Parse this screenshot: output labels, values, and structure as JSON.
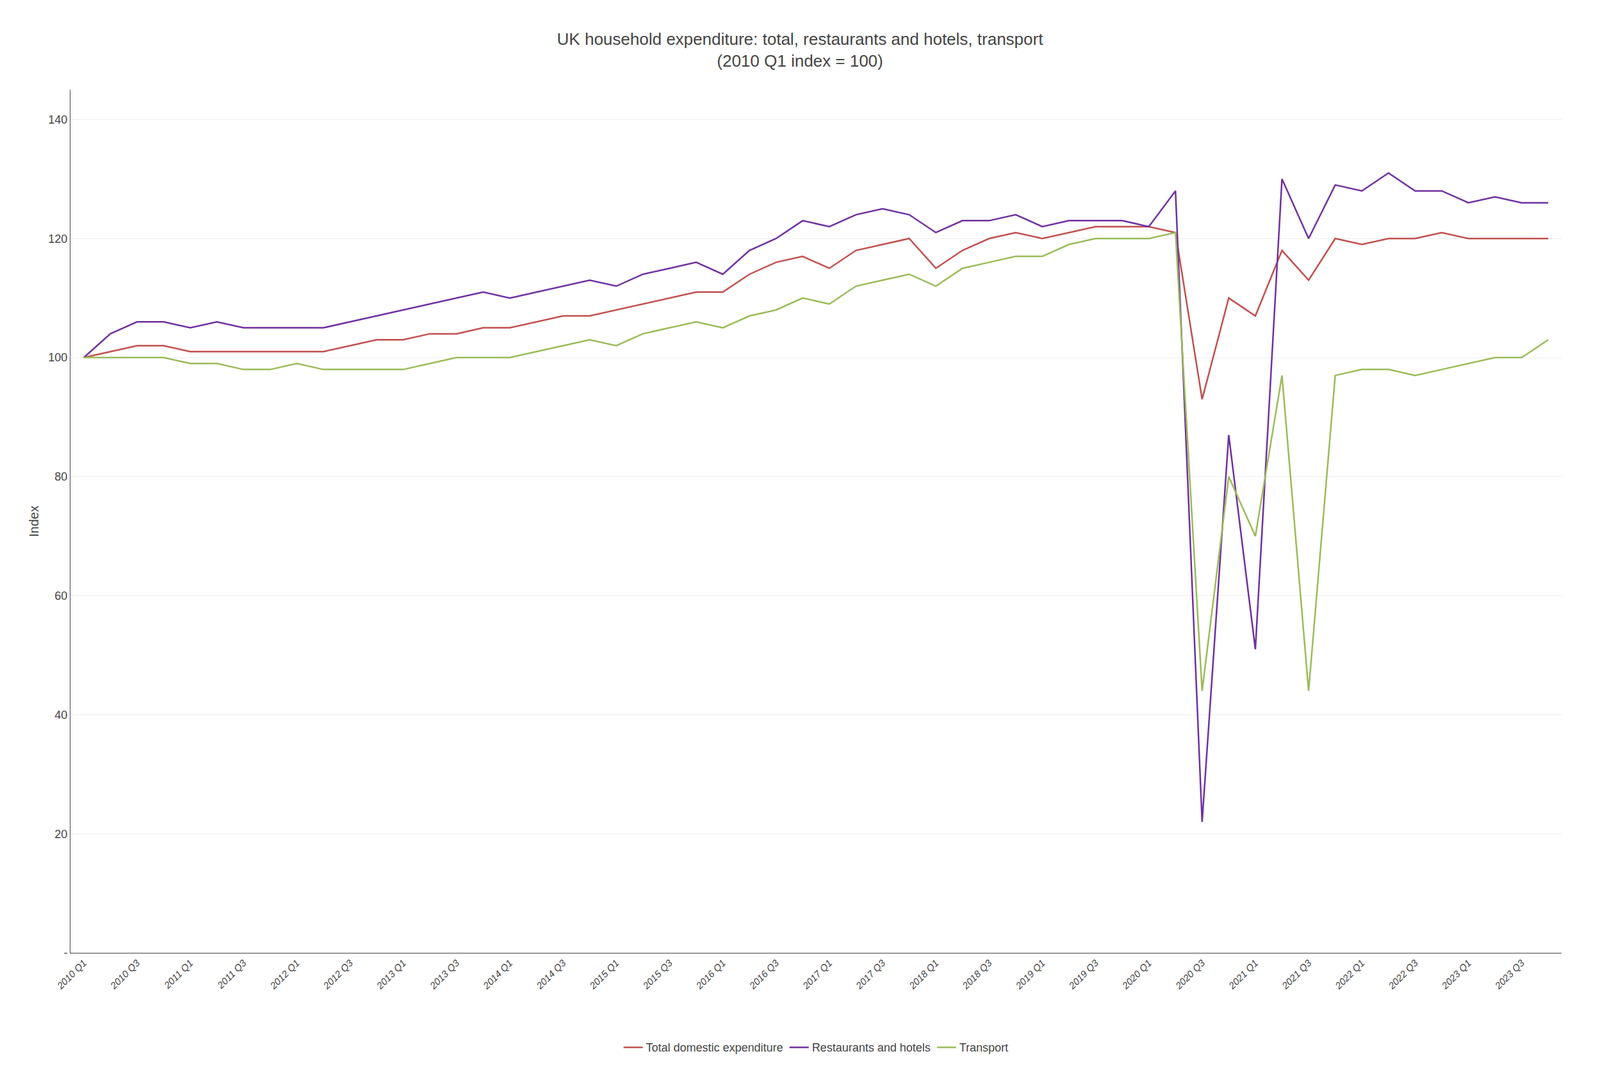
{
  "chart_data": {
    "type": "line",
    "title": "UK household expenditure: total, restaurants and hotels, transport\n(2010 Q1 index = 100)",
    "ylabel": "Index",
    "categories": [
      "2010 Q1",
      null,
      "2010 Q3",
      null,
      "2011 Q1",
      null,
      "2011 Q3",
      null,
      "2012 Q1",
      null,
      "2012 Q3",
      null,
      "2013 Q1",
      null,
      "2013 Q3",
      null,
      "2014 Q1",
      null,
      "2014 Q3",
      null,
      "2015 Q1",
      null,
      "2015 Q3",
      null,
      "2016 Q1",
      null,
      "2016 Q3",
      null,
      "2017 Q1",
      null,
      "2017 Q3",
      null,
      "2018 Q1",
      null,
      "2018 Q3",
      null,
      "2019 Q1",
      null,
      "2019 Q3",
      null,
      "2020 Q1",
      null,
      "2020 Q3",
      null,
      "2021 Q1",
      null,
      "2021 Q3",
      null,
      "2022 Q1",
      null,
      "2022 Q3",
      null,
      "2023 Q1",
      null,
      "2023 Q3",
      null
    ],
    "series": [
      {
        "name": "Total domestic expenditure",
        "color": "#c0504d",
        "values": [
          100,
          101,
          102,
          102,
          101,
          101,
          101,
          101,
          101,
          101,
          102,
          103,
          103,
          104,
          104,
          105,
          105,
          106,
          107,
          107,
          108,
          109,
          110,
          111,
          111,
          114,
          116,
          117,
          115,
          118,
          119,
          120,
          115,
          118,
          120,
          121,
          120,
          121,
          122,
          122,
          122,
          121,
          93,
          110,
          107,
          118,
          113,
          120,
          119,
          120,
          120,
          121,
          120,
          120,
          120,
          120
        ]
      },
      {
        "name": "Restaurants and hotels",
        "color": "#7030a0",
        "values": [
          100,
          104,
          106,
          106,
          105,
          106,
          105,
          105,
          105,
          105,
          106,
          107,
          108,
          109,
          110,
          111,
          110,
          111,
          112,
          113,
          112,
          114,
          115,
          116,
          114,
          118,
          120,
          123,
          122,
          124,
          125,
          124,
          121,
          123,
          123,
          124,
          122,
          123,
          123,
          123,
          122,
          128,
          22,
          87,
          51,
          130,
          120,
          129,
          128,
          131,
          128,
          128,
          126,
          127,
          126,
          126
        ]
      },
      {
        "name": "Transport",
        "color": "#9bbb59",
        "values": [
          100,
          100,
          100,
          100,
          99,
          99,
          98,
          98,
          99,
          98,
          98,
          98,
          98,
          99,
          100,
          100,
          100,
          101,
          102,
          103,
          102,
          104,
          105,
          106,
          105,
          107,
          108,
          110,
          109,
          112,
          113,
          114,
          112,
          115,
          116,
          117,
          117,
          119,
          120,
          120,
          120,
          121,
          44,
          80,
          70,
          97,
          44,
          97,
          98,
          98,
          97,
          98,
          99,
          100,
          100,
          103
        ]
      }
    ],
    "ylim": [
      0,
      145
    ],
    "yticks": [
      {
        "value": 0,
        "label": "-"
      },
      20,
      40,
      60,
      80,
      100,
      120,
      140
    ],
    "grid": true,
    "legend": "bottom"
  }
}
